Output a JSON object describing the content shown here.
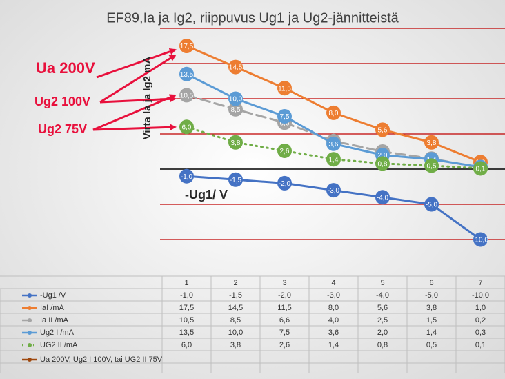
{
  "chart_data": {
    "type": "line",
    "title": "EF89,Ia ja Ig2, riippuvus Ug1 ja Ug2-jännitteistä",
    "y_label": "Virta Ia ja Ig2 mA",
    "annotations": [
      "Ua 200V",
      "Ug2 100V",
      "Ug2 75V",
      "-Ug1/ V"
    ],
    "categories": [
      "1",
      "2",
      "3",
      "4",
      "5",
      "6",
      "7"
    ],
    "ylim": [
      -10,
      20
    ],
    "yticks": [
      -10,
      -5,
      0,
      5,
      10,
      15,
      20
    ],
    "grid": true,
    "grid_color": "#c00000",
    "series": [
      {
        "name": "-Ug1 /V",
        "color": "#4472c4",
        "dash": "solid",
        "values": [
          -1.0,
          -1.5,
          -2.0,
          -3.0,
          -4.0,
          -5.0,
          -10.0
        ],
        "value_labels": [
          "-1,0",
          "-1,5",
          "-2,0",
          "-3,0",
          "-4,0",
          "-5,0",
          "-10,0"
        ]
      },
      {
        "name": "IaI /mA",
        "color": "#ed7d31",
        "dash": "solid",
        "values": [
          17.5,
          14.5,
          11.5,
          8.0,
          5.6,
          3.8,
          1.0
        ],
        "value_labels": [
          "17,5",
          "14,5",
          "11,5",
          "8,0",
          "5,6",
          "3,8",
          "1,0"
        ]
      },
      {
        "name": "Ia II /mA",
        "color": "#a5a5a5",
        "dash": "dashed",
        "values": [
          10.5,
          8.5,
          6.6,
          4.0,
          2.5,
          1.5,
          0.2
        ],
        "value_labels": [
          "10,5",
          "8,5",
          "6,6",
          "4,0",
          "2,5",
          "1,5",
          "0,2"
        ]
      },
      {
        "name": "Ug2 I /mA",
        "color": "#5b9bd5",
        "dash": "solid",
        "values": [
          13.5,
          10.0,
          7.5,
          3.6,
          2.0,
          1.4,
          0.3
        ],
        "value_labels": [
          "13,5",
          "10,0",
          "7,5",
          "3,6",
          "2,0",
          "1,4",
          "0,3"
        ]
      },
      {
        "name": "UG2 II /mA",
        "color": "#70ad47",
        "dash": "dotted",
        "values": [
          6.0,
          3.8,
          2.6,
          1.4,
          0.8,
          0.5,
          0.1
        ],
        "value_labels": [
          "6,0",
          "3,8",
          "2,6",
          "1,4",
          "0,8",
          "0,5",
          "0,1"
        ]
      },
      {
        "name": "Ua 200V, Ug2 I 100V, tai UG2 II 75V",
        "color": "#9e480e",
        "dash": "solid",
        "values": [
          null,
          null,
          null,
          null,
          null,
          null,
          null
        ]
      }
    ]
  }
}
